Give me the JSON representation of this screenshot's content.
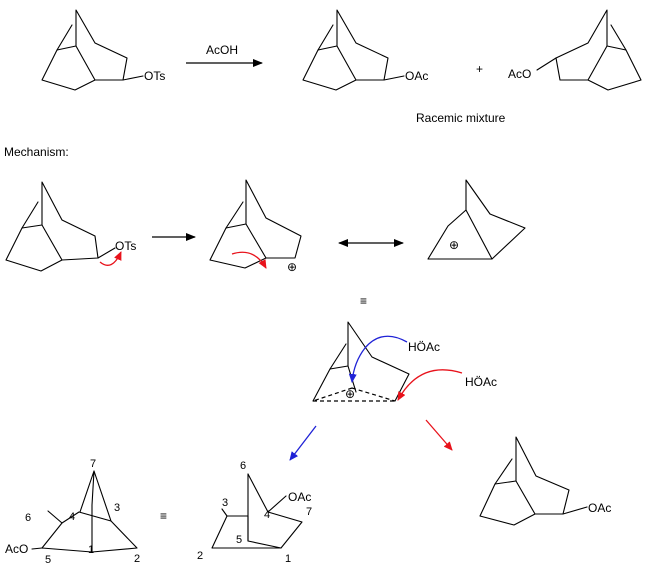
{
  "reaction": {
    "reactant_label": "OTs",
    "reagent": "AcOH",
    "product1_label": "OAc",
    "plus": "+",
    "product2_label": "AcO",
    "caption": "Racemic mixture"
  },
  "mechanism": {
    "heading": "Mechanism:",
    "step1_label": "OTs",
    "cation_symbol": "⊕",
    "equiv_symbol": "≡",
    "nucleophile1": "HÖAc",
    "nucleophile2": "HÖAc",
    "product_label": "OAc"
  },
  "numbered": {
    "left": {
      "c1": "1",
      "c2": "2",
      "c3": "3",
      "c4": "4",
      "c5": "5",
      "c6": "6",
      "c7": "7",
      "sub": "AcO"
    },
    "right": {
      "c1": "1",
      "c2": "2",
      "c3": "3",
      "c4": "4",
      "c5": "5",
      "c6": "6",
      "c7": "7",
      "sub": "OAc"
    }
  },
  "colors": {
    "red_arrow": "#e8121b",
    "blue_arrow": "#1f22d6",
    "ink": "#000000"
  }
}
